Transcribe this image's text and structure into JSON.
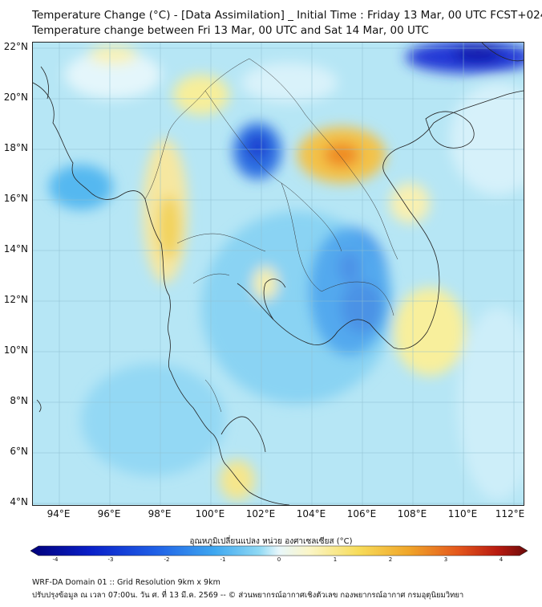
{
  "title_line1": "Temperature Change (°C) - [Data Assimilation] _ Initial Time : Friday 13 Mar, 00 UTC FCST+024",
  "title_line2": "Temperature change between Fri 13 Mar, 00 UTC and Sat 14 Mar, 00 UTC",
  "lat_labels": [
    "22°N",
    "20°N",
    "18°N",
    "16°N",
    "14°N",
    "12°N",
    "10°N",
    "8°N",
    "6°N",
    "4°N"
  ],
  "lon_labels": [
    "94°E",
    "96°E",
    "98°E",
    "100°E",
    "102°E",
    "104°E",
    "106°E",
    "108°E",
    "110°E",
    "112°E"
  ],
  "colorbar": {
    "title": "อุณหภูมิเปลี่ยนแปลง หน่วย องศาเซลเซียส (°C)",
    "ticks": [
      "-4",
      "-3",
      "-2",
      "-1",
      "0",
      "1",
      "2",
      "3",
      "4"
    ],
    "colors": [
      "#00007a",
      "#0a1fc8",
      "#1f5fe6",
      "#3ea7f0",
      "#8fd9f4",
      "#e8f7fb",
      "#fbf6c8",
      "#f7dc5a",
      "#f0a62a",
      "#e4571c",
      "#b81a10",
      "#6b0a0a"
    ]
  },
  "footer_line1": "WRF-DA Domain 01 :: Grid Resolution 9km x 9km",
  "footer_line2": "ปรับปรุงข้อมูล ณ เวลา 07:00น. วัน ศ. ที่ 13 มี.ค. 2569 -- © ส่วนพยากรณ์อากาศเชิงตัวเลข กองพยากรณ์อากาศ กรมอุตุนิยมวิทยา"
}
